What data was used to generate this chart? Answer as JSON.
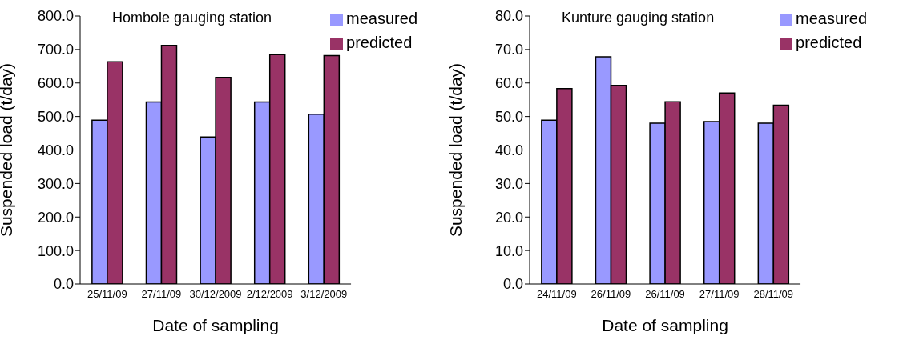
{
  "chart_data": [
    {
      "type": "bar",
      "title": "Hombole gauging station",
      "xlabel": "Date of sampling",
      "ylabel": "Suspended load (t/day)",
      "categories": [
        "25/11/09",
        "27/11/09",
        "30/12/2009",
        "2/12/2009",
        "3/12/2009"
      ],
      "series": [
        {
          "name": "measured",
          "color": "#9999ff",
          "values": [
            489,
            543,
            439,
            543,
            507
          ]
        },
        {
          "name": "predicted",
          "color": "#993366",
          "values": [
            663,
            712,
            617,
            685,
            682
          ]
        }
      ],
      "ylim": [
        0,
        800
      ],
      "yticks": [
        {
          "value": 0,
          "label": "0.0"
        },
        {
          "value": 100,
          "label": "100.0"
        },
        {
          "value": 200,
          "label": "200.0"
        },
        {
          "value": 300,
          "label": "300.0"
        },
        {
          "value": 400,
          "label": "400.0"
        },
        {
          "value": 500,
          "label": "500.0"
        },
        {
          "value": 600,
          "label": "600.0"
        },
        {
          "value": 700,
          "label": "700.0"
        },
        {
          "value": 800,
          "label": "800.0"
        }
      ],
      "grid": false,
      "legend": "top right"
    },
    {
      "type": "bar",
      "title": "Kunture gauging station",
      "xlabel": "Date of sampling",
      "ylabel": "Suspended load (t/day)",
      "categories": [
        "24/11/09",
        "26/11/09",
        "26/11/09",
        "27/11/09",
        "28/11/09"
      ],
      "series": [
        {
          "name": "measured",
          "color": "#9999ff",
          "values": [
            48.9,
            67.8,
            48.0,
            48.5,
            48.0
          ]
        },
        {
          "name": "predicted",
          "color": "#993366",
          "values": [
            58.3,
            59.3,
            54.4,
            57.0,
            53.4
          ]
        }
      ],
      "ylim": [
        0,
        80
      ],
      "yticks": [
        {
          "value": 0,
          "label": "0.0"
        },
        {
          "value": 10,
          "label": "10.0"
        },
        {
          "value": 20,
          "label": "20.0"
        },
        {
          "value": 30,
          "label": "30.0"
        },
        {
          "value": 40,
          "label": "40.0"
        },
        {
          "value": 50,
          "label": "50.0"
        },
        {
          "value": 60,
          "label": "60.0"
        },
        {
          "value": 70,
          "label": "70.0"
        },
        {
          "value": 80,
          "label": "80.0"
        }
      ],
      "grid": false,
      "legend": "top right"
    }
  ]
}
